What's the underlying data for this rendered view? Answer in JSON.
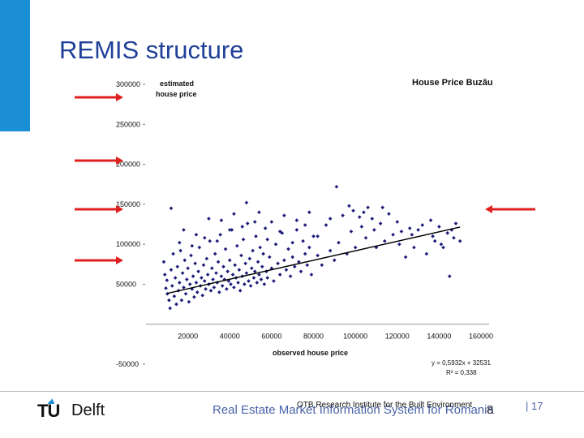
{
  "slide": {
    "title": "REMIS structure",
    "footer_text": "Real Estate Market Information System for Romania",
    "footer_overlay": "OTB Research Institute for the Built Environment",
    "footer_number": "8",
    "page_number": "| 17"
  },
  "logo": {
    "tu": "TU",
    "delft": "Delft"
  },
  "colors": {
    "accent": "#1a8fd6",
    "title": "#1f3f99",
    "points": "#1c1c7a",
    "arrows": "#e02020",
    "trendline": "#000000"
  },
  "chart_data": {
    "type": "scatter",
    "title": "House Price Buzău",
    "xlabel": "observed house price",
    "ylabel": "estimated house price",
    "x_ticks": [
      20000,
      40000,
      60000,
      80000,
      100000,
      120000,
      140000,
      160000
    ],
    "x_tick_labels": [
      "20000",
      "40000",
      "60000",
      "80000",
      "100000",
      "120000",
      "140000",
      "160000"
    ],
    "y_ticks": [
      300000,
      250000,
      200000,
      150000,
      100000,
      50000,
      -50000
    ],
    "y_tick_labels": [
      "300000",
      "250000",
      "200000",
      "150000",
      "100000",
      "50000",
      "-50000"
    ],
    "xlim": [
      0,
      160000
    ],
    "ylim": [
      -50000,
      300000
    ],
    "trendline": {
      "slope": 0.5932,
      "intercept": 32531,
      "x_range": [
        10000,
        150000
      ]
    },
    "equation": "y = 0,5932x + 32531",
    "r_squared": "R² = 0,338",
    "points": [
      [
        8500,
        78000
      ],
      [
        9000,
        62000
      ],
      [
        9500,
        45000
      ],
      [
        10000,
        55000
      ],
      [
        10200,
        38000
      ],
      [
        11000,
        30000
      ],
      [
        11500,
        20000
      ],
      [
        12000,
        68000
      ],
      [
        12500,
        48000
      ],
      [
        13000,
        88000
      ],
      [
        13500,
        35000
      ],
      [
        14000,
        58000
      ],
      [
        14500,
        25000
      ],
      [
        15000,
        72000
      ],
      [
        15500,
        42000
      ],
      [
        16000,
        52000
      ],
      [
        16500,
        92000
      ],
      [
        17000,
        30000
      ],
      [
        17500,
        64000
      ],
      [
        18000,
        46000
      ],
      [
        18500,
        80000
      ],
      [
        19000,
        38000
      ],
      [
        19500,
        56000
      ],
      [
        20000,
        70000
      ],
      [
        20500,
        28000
      ],
      [
        21000,
        50000
      ],
      [
        21500,
        86000
      ],
      [
        22000,
        44000
      ],
      [
        22500,
        60000
      ],
      [
        23000,
        34000
      ],
      [
        23500,
        76000
      ],
      [
        24000,
        52000
      ],
      [
        24500,
        40000
      ],
      [
        25000,
        66000
      ],
      [
        25500,
        96000
      ],
      [
        26000,
        48000
      ],
      [
        26500,
        58000
      ],
      [
        27000,
        36000
      ],
      [
        27500,
        74000
      ],
      [
        28000,
        54000
      ],
      [
        28500,
        44000
      ],
      [
        29000,
        82000
      ],
      [
        29500,
        62000
      ],
      [
        30000,
        50000
      ],
      [
        30500,
        104000
      ],
      [
        31000,
        42000
      ],
      [
        31500,
        70000
      ],
      [
        32000,
        56000
      ],
      [
        32500,
        46000
      ],
      [
        33000,
        88000
      ],
      [
        33500,
        64000
      ],
      [
        34000,
        52000
      ],
      [
        34500,
        78000
      ],
      [
        35000,
        40000
      ],
      [
        35500,
        112000
      ],
      [
        36000,
        60000
      ],
      [
        36500,
        48000
      ],
      [
        37000,
        72000
      ],
      [
        37500,
        56000
      ],
      [
        38000,
        94000
      ],
      [
        38500,
        44000
      ],
      [
        39000,
        66000
      ],
      [
        39500,
        54000
      ],
      [
        40000,
        80000
      ],
      [
        40500,
        50000
      ],
      [
        41000,
        118000
      ],
      [
        41500,
        62000
      ],
      [
        42000,
        46000
      ],
      [
        42500,
        74000
      ],
      [
        43000,
        58000
      ],
      [
        43500,
        98000
      ],
      [
        44000,
        52000
      ],
      [
        44500,
        68000
      ],
      [
        45000,
        42000
      ],
      [
        45500,
        86000
      ],
      [
        46000,
        60000
      ],
      [
        46500,
        106000
      ],
      [
        47000,
        50000
      ],
      [
        47500,
        76000
      ],
      [
        48000,
        64000
      ],
      [
        48500,
        126000
      ],
      [
        49000,
        54000
      ],
      [
        49500,
        82000
      ],
      [
        50000,
        48000
      ],
      [
        50500,
        70000
      ],
      [
        51000,
        92000
      ],
      [
        51500,
        58000
      ],
      [
        52000,
        66000
      ],
      [
        52500,
        110000
      ],
      [
        53000,
        52000
      ],
      [
        53500,
        78000
      ],
      [
        54000,
        62000
      ],
      [
        54500,
        96000
      ],
      [
        55000,
        56000
      ],
      [
        55500,
        72000
      ],
      [
        56000,
        88000
      ],
      [
        56500,
        50000
      ],
      [
        57000,
        120000
      ],
      [
        57500,
        66000
      ],
      [
        58000,
        58000
      ],
      [
        59000,
        84000
      ],
      [
        60000,
        70000
      ],
      [
        61000,
        54000
      ],
      [
        62000,
        100000
      ],
      [
        63000,
        76000
      ],
      [
        64000,
        62000
      ],
      [
        65000,
        114000
      ],
      [
        66000,
        80000
      ],
      [
        67000,
        68000
      ],
      [
        68000,
        94000
      ],
      [
        69000,
        60000
      ],
      [
        70000,
        84000
      ],
      [
        71000,
        72000
      ],
      [
        72000,
        130000
      ],
      [
        73000,
        78000
      ],
      [
        74000,
        66000
      ],
      [
        75000,
        104000
      ],
      [
        76000,
        88000
      ],
      [
        77000,
        74000
      ],
      [
        78000,
        96000
      ],
      [
        79000,
        62000
      ],
      [
        80000,
        110000
      ],
      [
        82000,
        86000
      ],
      [
        84000,
        74000
      ],
      [
        86000,
        124000
      ],
      [
        88000,
        92000
      ],
      [
        90000,
        80000
      ],
      [
        91000,
        172000
      ],
      [
        92000,
        102000
      ],
      [
        94000,
        136000
      ],
      [
        96000,
        88000
      ],
      [
        97000,
        148000
      ],
      [
        98000,
        116000
      ],
      [
        99000,
        142000
      ],
      [
        100000,
        96000
      ],
      [
        102000,
        134000
      ],
      [
        103000,
        122000
      ],
      [
        104000,
        140000
      ],
      [
        105000,
        108000
      ],
      [
        106000,
        146000
      ],
      [
        108000,
        132000
      ],
      [
        109000,
        118000
      ],
      [
        110000,
        96000
      ],
      [
        112000,
        126000
      ],
      [
        113000,
        146000
      ],
      [
        114000,
        104000
      ],
      [
        116000,
        138000
      ],
      [
        118000,
        112000
      ],
      [
        120000,
        128000
      ],
      [
        121000,
        100000
      ],
      [
        122000,
        116000
      ],
      [
        124000,
        84000
      ],
      [
        126000,
        120000
      ],
      [
        127000,
        112000
      ],
      [
        128000,
        96000
      ],
      [
        130000,
        118000
      ],
      [
        132000,
        124000
      ],
      [
        134000,
        88000
      ],
      [
        136000,
        130000
      ],
      [
        137000,
        110000
      ],
      [
        138000,
        104000
      ],
      [
        140000,
        122000
      ],
      [
        141000,
        100000
      ],
      [
        142000,
        96000
      ],
      [
        144000,
        114000
      ],
      [
        145000,
        60000
      ],
      [
        146000,
        118000
      ],
      [
        147000,
        108000
      ],
      [
        148000,
        126000
      ],
      [
        150000,
        104000
      ],
      [
        12000,
        145000
      ],
      [
        18000,
        118000
      ],
      [
        24000,
        112000
      ],
      [
        30000,
        132000
      ],
      [
        36000,
        130000
      ],
      [
        42000,
        138000
      ],
      [
        48000,
        152000
      ],
      [
        54000,
        140000
      ],
      [
        60000,
        128000
      ],
      [
        66000,
        136000
      ],
      [
        72000,
        118000
      ],
      [
        78000,
        140000
      ],
      [
        16000,
        102000
      ],
      [
        22000,
        98000
      ],
      [
        28000,
        108000
      ],
      [
        34000,
        104000
      ],
      [
        40000,
        118000
      ],
      [
        46000,
        122000
      ],
      [
        52000,
        128000
      ],
      [
        58000,
        106000
      ],
      [
        64000,
        116000
      ],
      [
        70000,
        102000
      ],
      [
        76000,
        124000
      ],
      [
        82000,
        110000
      ],
      [
        88000,
        132000
      ]
    ]
  }
}
